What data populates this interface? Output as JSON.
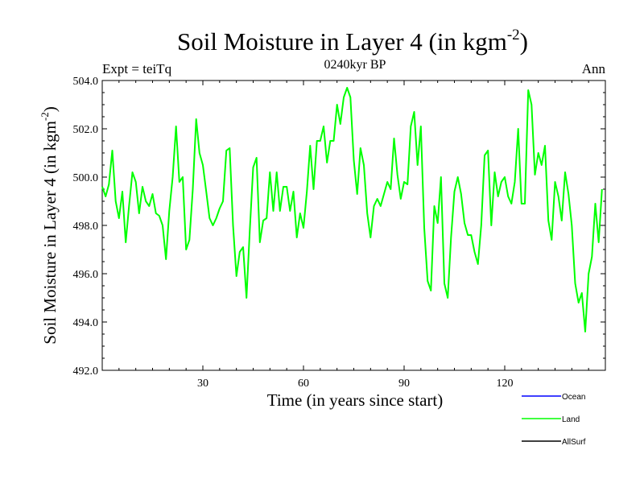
{
  "page": {
    "title_main": "Soil Moisture in Layer 4 (in kgm",
    "title_sup": "-2",
    "title_close": ")",
    "subtitle": "0240kyr BP",
    "left_label": "Expt = teiTq",
    "right_label": "Ann"
  },
  "chart_data": {
    "type": "line",
    "title": "Soil Moisture in Layer 4 (in kgm-2)",
    "subtitle": "0240kyr BP",
    "xlabel": "Time (in years since start)",
    "ylabel": "Soil Moisture in Layer 4 (in kgm-2)",
    "ylabel_main": "Soil Moisture in Layer 4 (in kgm",
    "ylabel_sup": "-2",
    "ylabel_close": ")",
    "xlim": [
      0,
      150
    ],
    "ylim": [
      492,
      504
    ],
    "x_ticks": [
      30,
      60,
      90,
      120
    ],
    "x_tick_labels": [
      "30",
      "60",
      "90",
      "120"
    ],
    "y_ticks": [
      492,
      494,
      496,
      498,
      500,
      502,
      504
    ],
    "y_tick_labels": [
      "492.0",
      "494.0",
      "496.0",
      "498.0",
      "500.0",
      "502.0",
      "504.0"
    ],
    "legend": [
      {
        "name": "Ocean",
        "color": "#0000ff"
      },
      {
        "name": "Land",
        "color": "#00ff00"
      },
      {
        "name": "AllSurf",
        "color": "#000000"
      }
    ],
    "series": [
      {
        "name": "Land",
        "color": "#00ff00",
        "x": [
          0,
          1,
          2,
          3,
          4,
          5,
          6,
          7,
          8,
          9,
          10,
          11,
          12,
          13,
          14,
          15,
          16,
          17,
          18,
          19,
          20,
          21,
          22,
          23,
          24,
          25,
          26,
          27,
          28,
          29,
          30,
          31,
          32,
          33,
          34,
          35,
          36,
          37,
          38,
          39,
          40,
          41,
          42,
          43,
          44,
          45,
          46,
          47,
          48,
          49,
          50,
          51,
          52,
          53,
          54,
          55,
          56,
          57,
          58,
          59,
          60,
          61,
          62,
          63,
          64,
          65,
          66,
          67,
          68,
          69,
          70,
          71,
          72,
          73,
          74,
          75,
          76,
          77,
          78,
          79,
          80,
          81,
          82,
          83,
          84,
          85,
          86,
          87,
          88,
          89,
          90,
          91,
          92,
          93,
          94,
          95,
          96,
          97,
          98,
          99,
          100,
          101,
          102,
          103,
          104,
          105,
          106,
          107,
          108,
          109,
          110,
          111,
          112,
          113,
          114,
          115,
          116,
          117,
          118,
          119,
          120,
          121,
          122,
          123,
          124,
          125,
          126,
          127,
          128,
          129,
          130,
          131,
          132,
          133,
          134,
          135,
          136,
          137,
          138,
          139,
          140,
          141,
          142,
          143,
          144,
          145,
          146,
          147,
          148,
          149
        ],
        "values": [
          499.6,
          499.2,
          499.7,
          501.1,
          499.0,
          498.3,
          499.4,
          497.3,
          498.8,
          500.2,
          499.8,
          498.5,
          499.6,
          499.0,
          498.8,
          499.3,
          498.5,
          498.4,
          498.0,
          496.6,
          498.6,
          500.0,
          502.1,
          499.8,
          500.0,
          497.0,
          497.4,
          499.5,
          502.4,
          501.0,
          500.5,
          499.4,
          498.3,
          498.0,
          498.3,
          498.7,
          499.0,
          501.1,
          501.2,
          498.0,
          495.9,
          496.9,
          497.1,
          495.0,
          497.8,
          500.4,
          500.8,
          497.3,
          498.2,
          498.3,
          500.2,
          498.6,
          500.2,
          498.6,
          499.6,
          499.6,
          498.6,
          499.4,
          497.5,
          498.5,
          497.9,
          499.4,
          501.3,
          499.5,
          501.5,
          501.5,
          502.1,
          500.6,
          501.5,
          501.5,
          503.0,
          502.2,
          503.3,
          503.7,
          503.3,
          500.7,
          499.3,
          501.2,
          500.5,
          498.5,
          497.5,
          498.8,
          499.1,
          498.8,
          499.3,
          499.8,
          499.5,
          501.6,
          500.1,
          499.1,
          499.8,
          499.7,
          502.1,
          502.7,
          500.5,
          502.1,
          497.9,
          495.7,
          495.3,
          498.8,
          498.1,
          500.0,
          495.6,
          495.0,
          497.5,
          499.4,
          500.0,
          499.3,
          498.1,
          497.6,
          497.6,
          496.9,
          496.4,
          498.0,
          500.9,
          501.1,
          498.0,
          500.2,
          499.2,
          499.8,
          500.0,
          499.2,
          498.9,
          499.8,
          502.0,
          498.9,
          498.9,
          503.6,
          503.0,
          500.1,
          501.0,
          500.5,
          501.3,
          498.2,
          497.4,
          499.8,
          499.2,
          498.2,
          500.2,
          499.3,
          498.0,
          495.6,
          494.8,
          495.2,
          493.6,
          496.0,
          496.7,
          498.9,
          497.3,
          499.5
        ]
      }
    ]
  }
}
